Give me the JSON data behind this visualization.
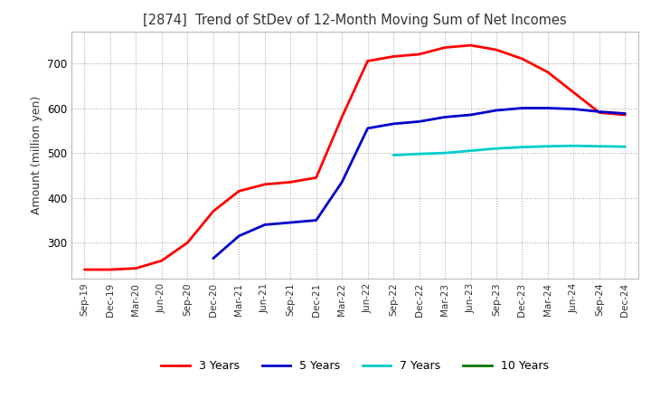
{
  "title": "[2874]  Trend of StDev of 12-Month Moving Sum of Net Incomes",
  "ylabel": "Amount (million yen)",
  "title_color": "#333333",
  "background_color": "#ffffff",
  "grid_color": "#aaaaaa",
  "ylim": [
    220,
    770
  ],
  "yticks": [
    300,
    400,
    500,
    600,
    700
  ],
  "legend_labels": [
    "3 Years",
    "5 Years",
    "7 Years",
    "10 Years"
  ],
  "legend_colors": [
    "#ff0000",
    "#0000cc",
    "#00cccc",
    "#007700"
  ],
  "x_labels": [
    "Sep-19",
    "Dec-19",
    "Mar-20",
    "Jun-20",
    "Sep-20",
    "Dec-20",
    "Mar-21",
    "Jun-21",
    "Sep-21",
    "Dec-21",
    "Mar-22",
    "Jun-22",
    "Sep-22",
    "Dec-22",
    "Mar-23",
    "Jun-23",
    "Sep-23",
    "Dec-23",
    "Mar-24",
    "Jun-24",
    "Sep-24",
    "Dec-24"
  ],
  "series_3y": [
    240,
    240,
    243,
    260,
    300,
    370,
    415,
    430,
    435,
    445,
    580,
    705,
    715,
    720,
    735,
    740,
    730,
    710,
    680,
    635,
    590,
    585
  ],
  "series_5y": [
    null,
    null,
    null,
    null,
    null,
    265,
    315,
    340,
    345,
    350,
    435,
    555,
    565,
    570,
    580,
    585,
    595,
    600,
    600,
    598,
    592,
    588
  ],
  "series_7y": [
    null,
    null,
    null,
    null,
    null,
    null,
    null,
    null,
    null,
    null,
    null,
    null,
    495,
    498,
    500,
    505,
    510,
    513,
    515,
    516,
    515,
    514
  ],
  "series_10y": []
}
